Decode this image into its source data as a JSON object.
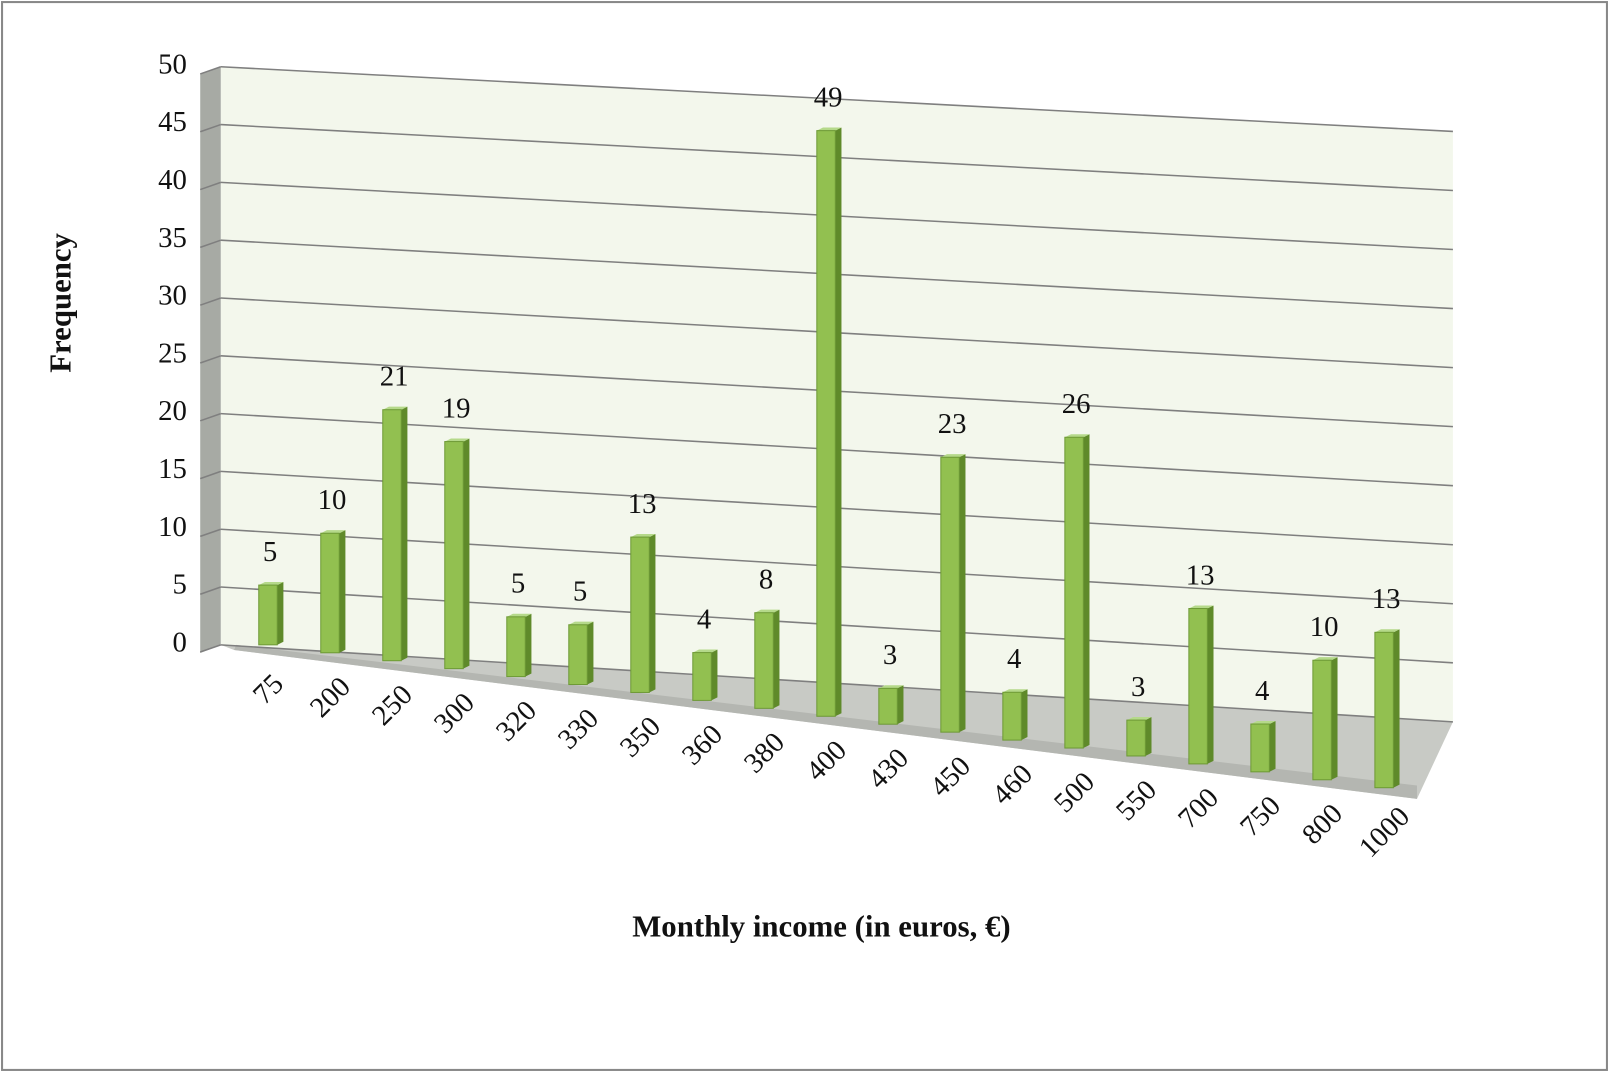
{
  "chart_data": {
    "type": "bar",
    "x_label": "Monthly income (in euros, €)",
    "y_label": "Frequency",
    "categories": [
      "75",
      "200",
      "250",
      "300",
      "320",
      "330",
      "350",
      "360",
      "380",
      "400",
      "430",
      "450",
      "460",
      "500",
      "550",
      "700",
      "750",
      "800",
      "1000"
    ],
    "values": [
      5,
      10,
      21,
      19,
      5,
      5,
      13,
      4,
      8,
      49,
      3,
      23,
      4,
      26,
      3,
      13,
      4,
      10,
      13
    ],
    "color": "#92c050",
    "ylim": [
      0,
      50
    ],
    "yticks": [
      0,
      5,
      10,
      15,
      20,
      25,
      30,
      35,
      40,
      45,
      50
    ],
    "grid": true
  }
}
